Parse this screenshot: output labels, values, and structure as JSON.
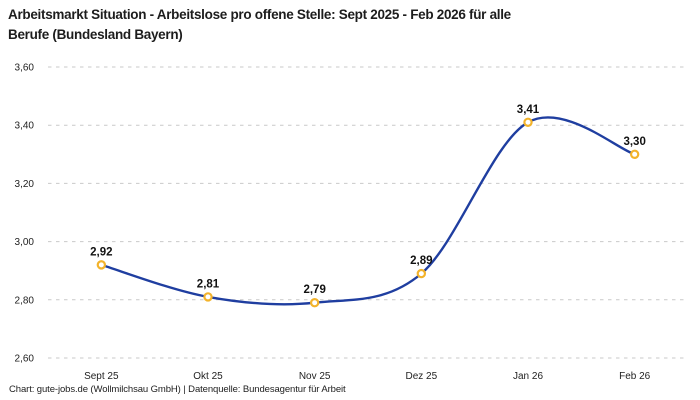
{
  "page": {
    "footer": "Chart: gute-jobs.de (Wollmilchsau GmbH) | Datenquelle: Bundesagentur für Arbeit"
  },
  "colors": {
    "line": "#1f3ea0",
    "marker_ring": "#f3b32b",
    "marker_fill": "#ffffff",
    "grid": "#c9c9c9",
    "title_text": "#1d1d1d",
    "tick_text": "#222222",
    "point_label_text": "#111111",
    "background": "#ffffff"
  },
  "chart_data": {
    "type": "line",
    "title": "Arbeitsmarkt Situation - Arbeitslose pro offene Stelle: Sept 2025 - Feb 2026 für alle\nBerufe (Bundesland Bayern)",
    "categories": [
      "Sept 25",
      "Okt 25",
      "Nov 25",
      "Dez 25",
      "Jan 26",
      "Feb 26"
    ],
    "values": [
      2.92,
      2.81,
      2.79,
      2.89,
      3.41,
      3.3
    ],
    "point_labels": [
      "2,92",
      "2,81",
      "2,79",
      "2,89",
      "3,41",
      "3,30"
    ],
    "xlabel": "",
    "ylabel": "",
    "ylim": [
      2.6,
      3.6
    ],
    "yticks": [
      {
        "value": 2.6,
        "label": "2,60"
      },
      {
        "value": 2.8,
        "label": "2,80"
      },
      {
        "value": 3.0,
        "label": "3,00"
      },
      {
        "value": 3.2,
        "label": "3,20"
      },
      {
        "value": 3.4,
        "label": "3,40"
      },
      {
        "value": 3.6,
        "label": "3,60"
      }
    ],
    "grid": "horizontal-dashed",
    "legend": "none",
    "curve": "smooth"
  }
}
